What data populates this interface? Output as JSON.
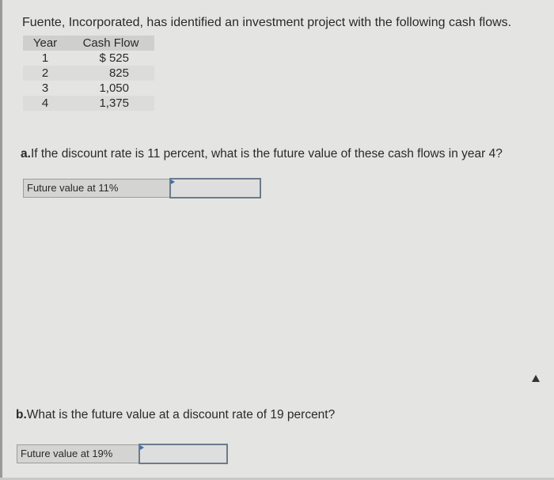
{
  "intro": "Fuente, Incorporated, has identified an investment project with the following cash flows.",
  "table": {
    "headers": [
      "Year",
      "Cash Flow"
    ],
    "rows": [
      {
        "year": "1",
        "cash_flow": "$ 525"
      },
      {
        "year": "2",
        "cash_flow": "825"
      },
      {
        "year": "3",
        "cash_flow": "1,050"
      },
      {
        "year": "4",
        "cash_flow": "1,375"
      }
    ]
  },
  "question_a": {
    "prefix": "a.",
    "text": "If the discount rate is 11 percent, what is the future value of these cash flows in year 4?",
    "answer_label": "Future value at 11%",
    "answer_value": ""
  },
  "question_b": {
    "prefix": "b.",
    "text": "What is the future value at a discount rate of 19 percent?",
    "answer_label": "Future value at 19%",
    "answer_value": ""
  }
}
